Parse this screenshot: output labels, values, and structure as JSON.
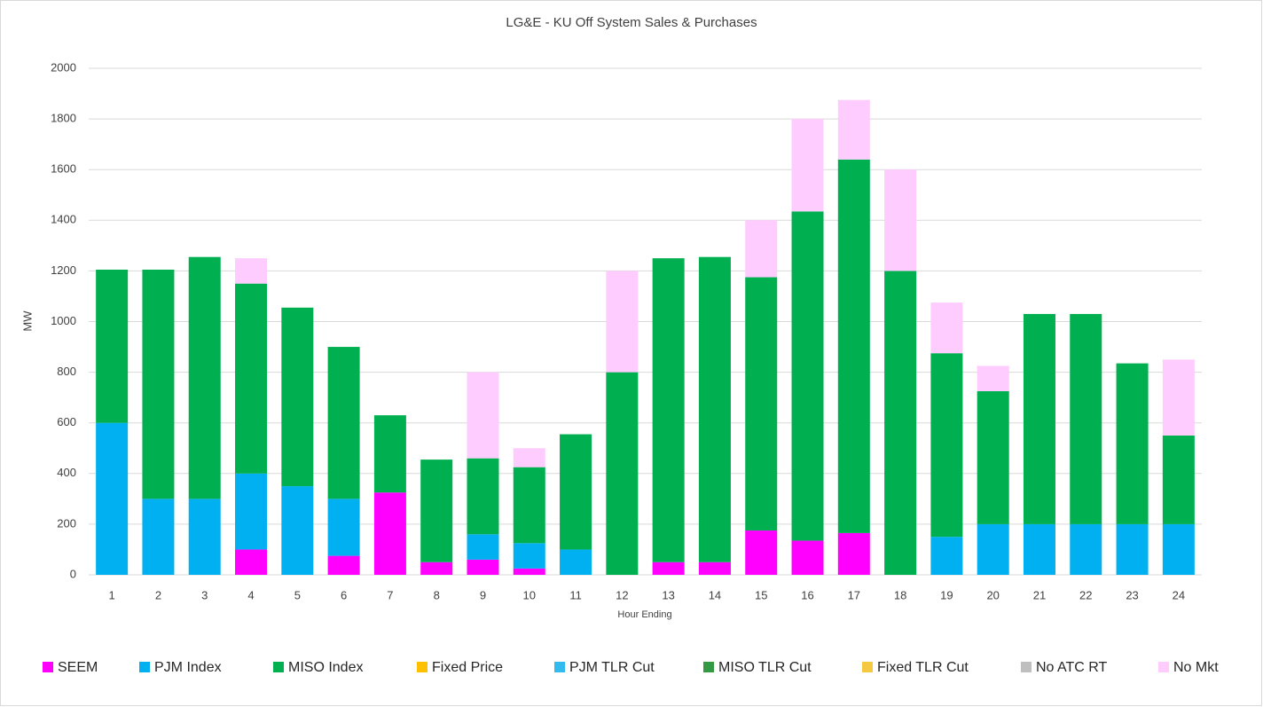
{
  "chart_data": {
    "type": "stacked_bar",
    "title": "LG&E - KU Off System Sales & Purchases",
    "x_label": "Hour Ending",
    "y_label": "MW",
    "categories": [
      "1",
      "2",
      "3",
      "4",
      "5",
      "6",
      "7",
      "8",
      "9",
      "10",
      "11",
      "12",
      "13",
      "14",
      "15",
      "16",
      "17",
      "18",
      "19",
      "20",
      "21",
      "22",
      "23",
      "24"
    ],
    "ylim": [
      0,
      2000
    ],
    "yticks": [
      0,
      200,
      400,
      600,
      800,
      1000,
      1200,
      1400,
      1600,
      1800,
      2000
    ],
    "grid": true,
    "legend": "bottom",
    "series": [
      {
        "name": "SEEM",
        "color": "#ff00ff",
        "values": [
          0,
          0,
          0,
          100,
          0,
          75,
          325,
          50,
          60,
          25,
          0,
          0,
          50,
          50,
          175,
          135,
          165,
          0,
          0,
          0,
          0,
          0,
          0,
          0
        ]
      },
      {
        "name": "PJM Index",
        "color": "#00b0f0",
        "values": [
          600,
          300,
          300,
          300,
          350,
          225,
          0,
          0,
          100,
          100,
          100,
          0,
          0,
          0,
          0,
          0,
          0,
          0,
          150,
          200,
          200,
          200,
          200,
          200
        ]
      },
      {
        "name": "MISO Index",
        "color": "#00b050",
        "values": [
          605,
          905,
          955,
          750,
          705,
          600,
          305,
          405,
          300,
          300,
          455,
          800,
          1200,
          1205,
          1000,
          1300,
          1475,
          1200,
          725,
          525,
          830,
          830,
          635,
          350
        ]
      },
      {
        "name": "Fixed Price",
        "color": "#ffc000",
        "values": [
          0,
          0,
          0,
          0,
          0,
          0,
          0,
          0,
          0,
          0,
          0,
          0,
          0,
          0,
          0,
          0,
          0,
          0,
          0,
          0,
          0,
          0,
          0,
          0
        ]
      },
      {
        "name": "PJM TLR Cut",
        "color": "#33bbee",
        "values": [
          0,
          0,
          0,
          0,
          0,
          0,
          0,
          0,
          0,
          0,
          0,
          0,
          0,
          0,
          0,
          0,
          0,
          0,
          0,
          0,
          0,
          0,
          0,
          0
        ]
      },
      {
        "name": "MISO TLR Cut",
        "color": "#339944",
        "values": [
          0,
          0,
          0,
          0,
          0,
          0,
          0,
          0,
          0,
          0,
          0,
          0,
          0,
          0,
          0,
          0,
          0,
          0,
          0,
          0,
          0,
          0,
          0,
          0
        ]
      },
      {
        "name": "Fixed TLR Cut",
        "color": "#f5c842",
        "values": [
          0,
          0,
          0,
          0,
          0,
          0,
          0,
          0,
          0,
          0,
          0,
          0,
          0,
          0,
          0,
          0,
          0,
          0,
          0,
          0,
          0,
          0,
          0,
          0
        ]
      },
      {
        "name": "No ATC RT",
        "color": "#bfbfbf",
        "values": [
          0,
          0,
          0,
          0,
          0,
          0,
          0,
          0,
          0,
          0,
          0,
          0,
          0,
          0,
          0,
          0,
          0,
          0,
          0,
          0,
          0,
          0,
          0,
          0
        ]
      },
      {
        "name": "No Mkt",
        "color": "#ffccff",
        "values": [
          0,
          0,
          0,
          100,
          0,
          0,
          0,
          0,
          340,
          75,
          0,
          400,
          0,
          0,
          225,
          365,
          235,
          400,
          200,
          100,
          0,
          0,
          0,
          300
        ]
      }
    ]
  }
}
